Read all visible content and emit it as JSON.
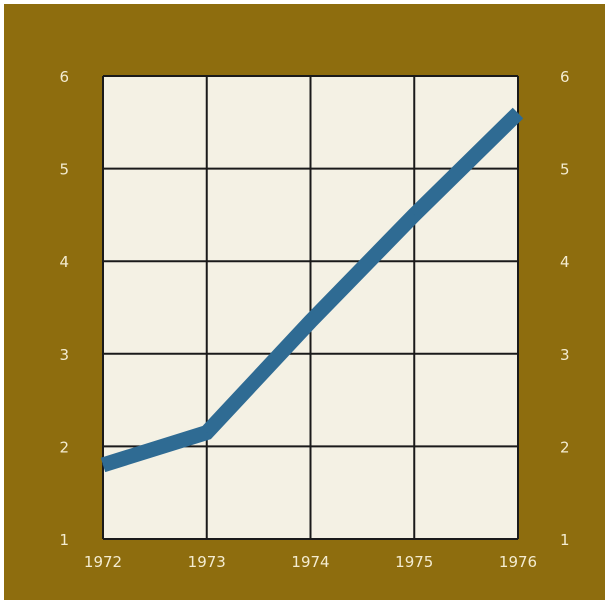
{
  "chart_data": {
    "type": "line",
    "title": "",
    "xlabel": "",
    "ylabel": "",
    "x": [
      "1972",
      "1973",
      "1974",
      "1975",
      "1976"
    ],
    "series": [
      {
        "values": [
          1.8,
          2.15,
          3.35,
          4.5,
          5.6
        ]
      }
    ],
    "yticks": [
      "1",
      "2",
      "3",
      "4",
      "5",
      "6"
    ],
    "ylim": [
      1,
      6
    ],
    "grid": true,
    "y_axis_labels_both_sides": true,
    "colors": {
      "frame": "#8e6d0e",
      "plot_background": "#f4f1e4",
      "grid": "#1a1a1a",
      "line": "#2f6b93",
      "tick_text": "#f4ecd0"
    }
  }
}
